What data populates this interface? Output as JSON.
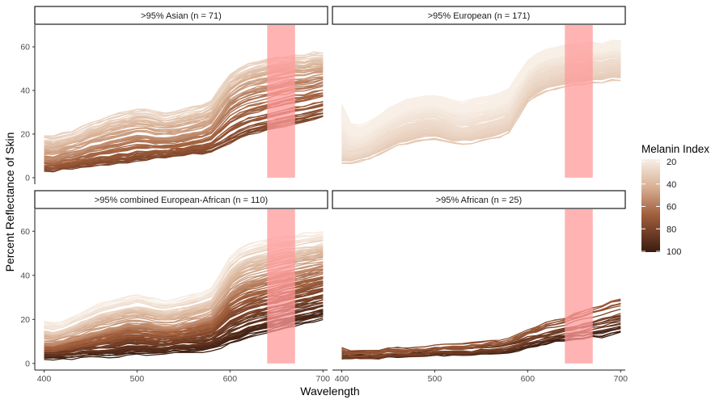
{
  "chart_data": {
    "type": "line",
    "xlabel": "Wavelength",
    "ylabel": "Percent Reflectance of Skin",
    "xlim": [
      390,
      705
    ],
    "ylim": [
      -3,
      70
    ],
    "x_ticks": [
      400,
      500,
      600,
      700
    ],
    "y_ticks": [
      0,
      20,
      40,
      60
    ],
    "highlight_band": {
      "x_range": [
        640,
        670
      ],
      "y_range": [
        0,
        70
      ],
      "color": "#ff9999"
    },
    "legend": {
      "title": "Melanin Index",
      "ticks": [
        20,
        40,
        60,
        80,
        100
      ],
      "color_low": "#f8efe6",
      "color_high": "#3a1c10"
    },
    "x": [
      400,
      410,
      420,
      430,
      440,
      450,
      460,
      470,
      480,
      490,
      500,
      510,
      520,
      530,
      540,
      550,
      560,
      570,
      580,
      590,
      600,
      610,
      620,
      630,
      640,
      650,
      660,
      670,
      680,
      690,
      700
    ],
    "panels": [
      {
        "title": ">95% Asian (n = 71)",
        "n_lines": 71,
        "melanin_range": [
          28,
          75
        ],
        "shape": "bump",
        "sample_spectra": [
          {
            "melanin": 30,
            "values": [
              18,
              18,
              19,
              20,
              22,
              24,
              25,
              27,
              28,
              29,
              30,
              30,
              29,
              28,
              29,
              30,
              31,
              32,
              34,
              40,
              46,
              49,
              51,
              52,
              53,
              54,
              54,
              55,
              55,
              56,
              56
            ]
          },
          {
            "melanin": 50,
            "values": [
              9,
              9,
              10,
              11,
              12,
              14,
              15,
              16,
              17,
              18,
              19,
              19,
              18,
              18,
              18,
              19,
              20,
              21,
              23,
              29,
              35,
              38,
              40,
              41,
              42,
              43,
              44,
              45,
              45,
              46,
              47
            ]
          },
          {
            "melanin": 72,
            "values": [
              4,
              4,
              5,
              5,
              6,
              6,
              7,
              7,
              8,
              8,
              9,
              9,
              10,
              10,
              11,
              11,
              12,
              12,
              13,
              15,
              17,
              19,
              21,
              22,
              23,
              24,
              25,
              26,
              27,
              28,
              29
            ]
          }
        ]
      },
      {
        "title": ">95% European (n = 171)",
        "n_lines": 171,
        "melanin_range": [
          18,
          32
        ],
        "shape": "dip",
        "sample_spectra": [
          {
            "melanin": 18,
            "values": [
              33,
              24,
              23,
              25,
              28,
              31,
              33,
              35,
              36,
              37,
              37,
              36,
              35,
              34,
              35,
              36,
              37,
              38,
              40,
              47,
              53,
              56,
              58,
              59,
              60,
              60,
              61,
              61,
              61,
              62,
              62
            ]
          },
          {
            "melanin": 25,
            "values": [
              14,
              13,
              14,
              16,
              19,
              22,
              24,
              26,
              27,
              28,
              28,
              27,
              25,
              24,
              25,
              26,
              27,
              28,
              30,
              38,
              45,
              49,
              51,
              52,
              53,
              54,
              54,
              55,
              55,
              56,
              56
            ]
          },
          {
            "melanin": 32,
            "values": [
              8,
              8,
              9,
              10,
              12,
              14,
              16,
              17,
              18,
              19,
              19,
              18,
              17,
              17,
              17,
              18,
              19,
              20,
              22,
              29,
              36,
              39,
              41,
              42,
              43,
              44,
              44,
              45,
              45,
              46,
              46
            ]
          }
        ]
      },
      {
        "title": ">95% combined European-African (n = 110)",
        "n_lines": 110,
        "melanin_range": [
          20,
          100
        ],
        "shape": "bump",
        "sample_spectra": [
          {
            "melanin": 22,
            "values": [
              18,
              17,
              18,
              20,
              22,
              24,
              26,
              27,
              28,
              29,
              30,
              29,
              28,
              27,
              28,
              29,
              30,
              31,
              33,
              40,
              47,
              51,
              53,
              54,
              55,
              56,
              57,
              57,
              58,
              58,
              59
            ]
          },
          {
            "melanin": 55,
            "values": [
              8,
              8,
              9,
              10,
              11,
              12,
              13,
              14,
              15,
              16,
              16,
              16,
              15,
              15,
              15,
              16,
              17,
              18,
              19,
              24,
              29,
              32,
              34,
              35,
              36,
              37,
              38,
              39,
              40,
              41,
              42
            ]
          },
          {
            "melanin": 98,
            "values": [
              3,
              3,
              3,
              3,
              4,
              4,
              4,
              4,
              4,
              5,
              5,
              5,
              5,
              5,
              6,
              6,
              6,
              6,
              7,
              8,
              10,
              11,
              13,
              14,
              15,
              16,
              17,
              18,
              19,
              20,
              21
            ]
          }
        ]
      },
      {
        "title": ">95% African (n = 25)",
        "n_lines": 25,
        "melanin_range": [
          62,
          100
        ],
        "shape": "flat",
        "sample_spectra": [
          {
            "melanin": 62,
            "values": [
              7,
              5,
              5,
              5,
              5,
              6,
              6,
              6,
              7,
              7,
              7,
              8,
              8,
              8,
              9,
              9,
              10,
              10,
              11,
              13,
              15,
              17,
              19,
              20,
              21,
              23,
              24,
              26,
              27,
              29,
              30
            ]
          },
          {
            "melanin": 80,
            "values": [
              4,
              4,
              4,
              4,
              4,
              5,
              5,
              5,
              5,
              5,
              6,
              6,
              6,
              6,
              6,
              7,
              7,
              7,
              8,
              9,
              11,
              12,
              13,
              14,
              15,
              16,
              17,
              18,
              19,
              20,
              21
            ]
          },
          {
            "melanin": 100,
            "values": [
              3,
              3,
              3,
              3,
              3,
              3,
              3,
              3,
              4,
              4,
              4,
              4,
              4,
              4,
              4,
              5,
              5,
              5,
              5,
              6,
              7,
              8,
              9,
              10,
              10,
              11,
              11,
              12,
              12,
              13,
              14
            ]
          }
        ]
      }
    ]
  }
}
